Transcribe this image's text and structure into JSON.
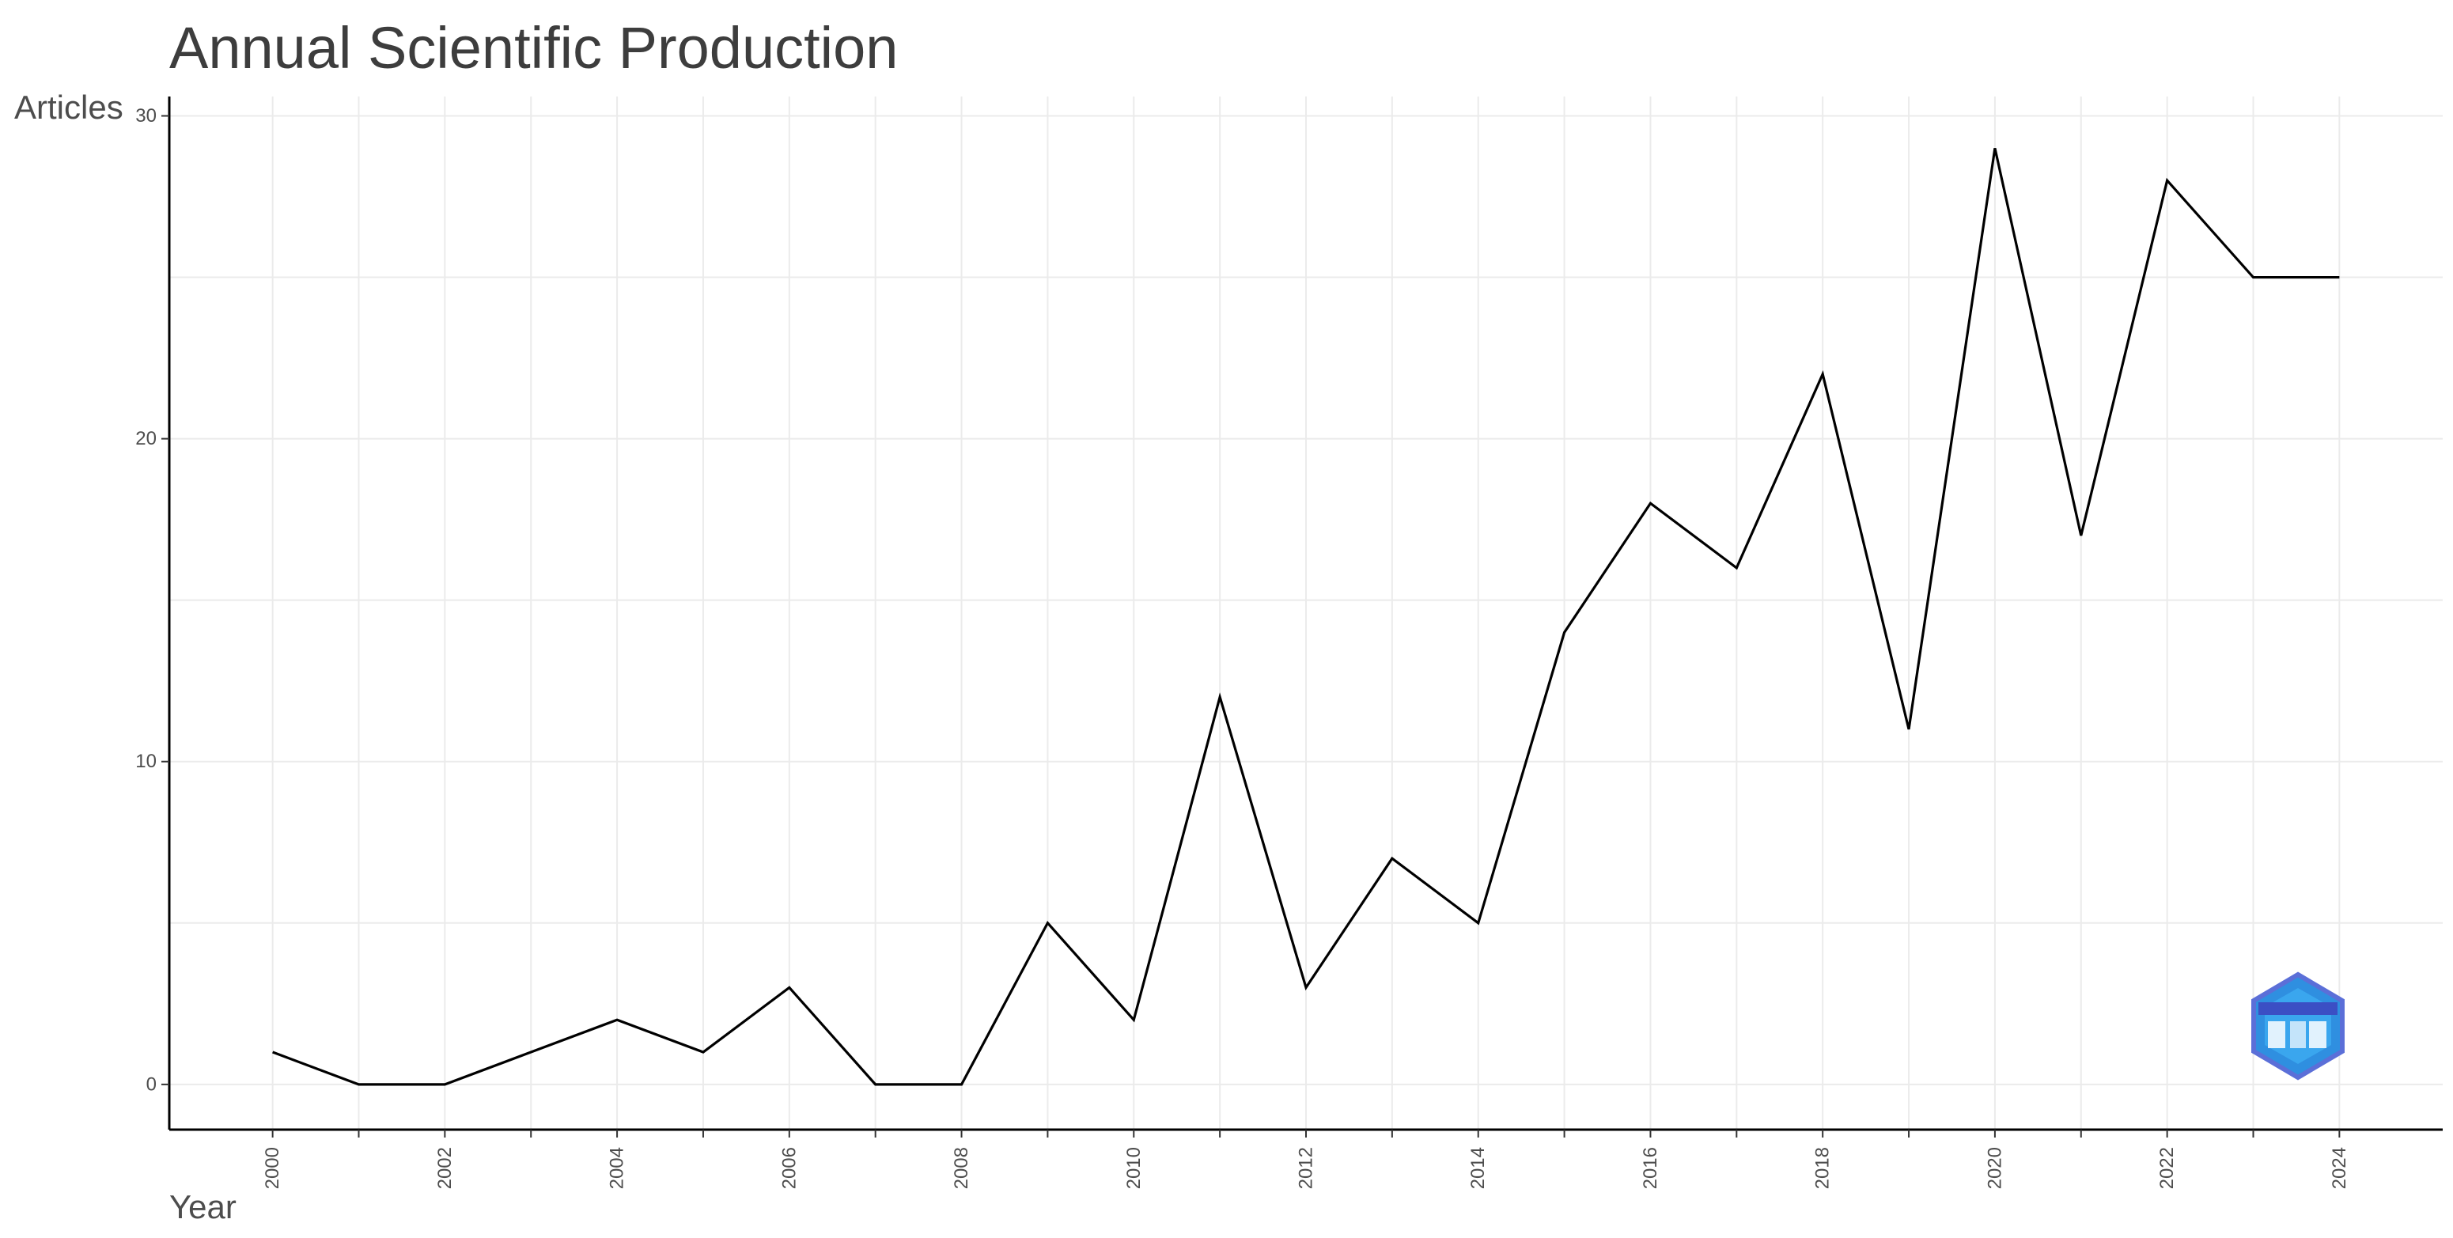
{
  "chart_data": {
    "type": "line",
    "title": "Annual Scientific Production",
    "xlabel": "Year",
    "ylabel": "Articles",
    "x": [
      2000,
      2001,
      2002,
      2003,
      2004,
      2005,
      2006,
      2007,
      2008,
      2009,
      2010,
      2011,
      2012,
      2013,
      2014,
      2015,
      2016,
      2017,
      2018,
      2019,
      2020,
      2021,
      2022,
      2023,
      2024
    ],
    "series": [
      {
        "values": [
          1,
          0,
          0,
          1,
          2,
          1,
          3,
          0,
          0,
          5,
          2,
          12,
          3,
          7,
          5,
          14,
          18,
          16,
          22,
          11,
          29,
          17,
          28,
          25,
          25
        ]
      }
    ],
    "xlim": [
      1998.8,
      2025.2
    ],
    "ylim": [
      -1.4,
      30.6
    ],
    "x_ticks": [
      "2000",
      "2002",
      "2004",
      "2006",
      "2008",
      "2010",
      "2012",
      "2014",
      "2016",
      "2018",
      "2020",
      "2022",
      "2024"
    ],
    "y_ticks": [
      "0",
      "10",
      "20",
      "30"
    ],
    "grid": true,
    "line_color": "#000000",
    "grid_color": "#ebebeb",
    "logo": "bibliometrix-logo"
  }
}
